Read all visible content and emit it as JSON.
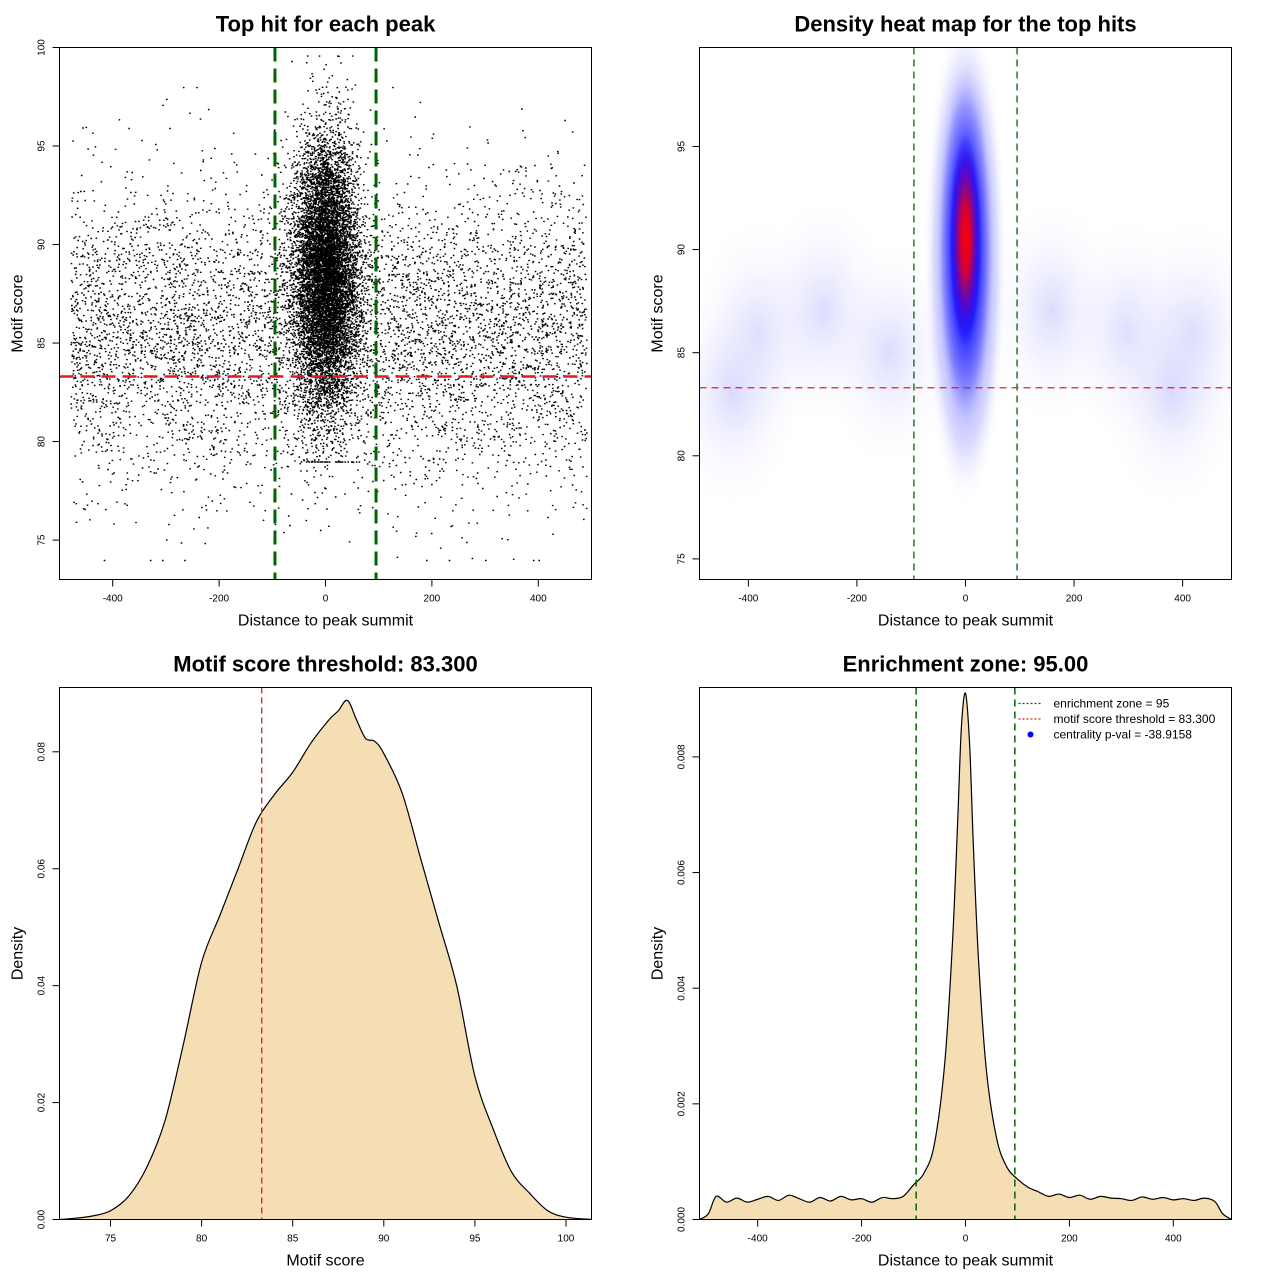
{
  "chart_data": [
    {
      "type": "scatter",
      "title": "Top hit for each peak",
      "xlabel": "Distance to peak summit",
      "ylabel": "Motif score",
      "xlim": [
        -500,
        500
      ],
      "ylim": [
        73,
        100
      ],
      "xticks": [
        -400,
        -200,
        0,
        200,
        400
      ],
      "yticks": [
        75,
        80,
        85,
        90,
        95,
        100
      ],
      "vlines": [
        -95,
        95
      ],
      "hline": 83.3,
      "colors": {
        "points": "#000000",
        "vlines": "#006400",
        "hline": "#e41a1c"
      },
      "points_model": {
        "description": "~16000 hits; dense cluster centred at 0 (sd ~30) with scores 79-99, plus uniform background across -480..490 with scores 77-93",
        "central_count": 9500,
        "central_x_sd": 30,
        "central_score_mean": 88.5,
        "central_score_sd": 3.4,
        "background_count": 6500,
        "background_x_range": [
          -480,
          490
        ],
        "background_score_mean": 85.5,
        "background_score_sd": 3.8
      }
    },
    {
      "type": "heatmap",
      "title": "Density heat map for the top hits",
      "xlabel": "Distance to peak summit",
      "ylabel": "Motif score",
      "xlim": [
        -490,
        490
      ],
      "ylim": [
        74,
        99.8
      ],
      "xticks": [
        -400,
        -200,
        0,
        200,
        400
      ],
      "yticks": [
        75,
        80,
        85,
        90,
        95
      ],
      "vlines": [
        -95,
        95
      ],
      "hline": 83.3,
      "peak": {
        "x": 0,
        "y": 90.5
      },
      "colors": {
        "low": "#ffffff",
        "mid": "#0000ff",
        "high": "#ff0000",
        "vlines": "#006400",
        "hline": "#d62728"
      }
    },
    {
      "type": "area",
      "title": "Motif score threshold: 83.300",
      "xlabel": "Motif score",
      "ylabel": "Density",
      "xlim": [
        72.2,
        101.4
      ],
      "ylim": [
        0,
        0.091
      ],
      "xticks": [
        75,
        80,
        85,
        90,
        95,
        100
      ],
      "yticks": [
        0.0,
        0.02,
        0.04,
        0.06,
        0.08
      ],
      "ytick_labels": [
        "0.00",
        "0.02",
        "0.04",
        "0.06",
        "0.08"
      ],
      "vline": 83.3,
      "fill": "#f5deb3",
      "x": [
        72.2,
        73,
        74,
        75,
        76,
        77,
        78,
        79,
        80,
        81,
        82,
        83,
        84,
        85,
        86,
        87,
        87.5,
        88,
        88.5,
        89,
        89.5,
        90,
        91,
        92,
        93,
        94,
        95,
        96,
        97,
        98,
        99,
        100,
        101.4
      ],
      "y": [
        0.0,
        0.0002,
        0.0006,
        0.0015,
        0.004,
        0.009,
        0.017,
        0.03,
        0.044,
        0.052,
        0.06,
        0.068,
        0.0727,
        0.0765,
        0.0815,
        0.0855,
        0.087,
        0.0888,
        0.0855,
        0.0823,
        0.0818,
        0.0797,
        0.073,
        0.062,
        0.051,
        0.04,
        0.0245,
        0.0155,
        0.0082,
        0.0045,
        0.0015,
        0.0004,
        0.0
      ]
    },
    {
      "type": "area",
      "title": "Enrichment zone: 95.00",
      "xlabel": "Distance to peak summit",
      "ylabel": "Density",
      "xlim": [
        -512,
        512
      ],
      "ylim": [
        0,
        0.0092
      ],
      "xticks": [
        -400,
        -200,
        0,
        200,
        400
      ],
      "yticks": [
        0.0,
        0.002,
        0.004,
        0.006,
        0.008
      ],
      "ytick_labels": [
        "0.000",
        "0.002",
        "0.004",
        "0.006",
        "0.008"
      ],
      "vlines": [
        -95,
        95
      ],
      "fill": "#f5deb3",
      "x": [
        -512,
        -495,
        -480,
        -460,
        -440,
        -420,
        -400,
        -380,
        -360,
        -340,
        -320,
        -300,
        -280,
        -260,
        -240,
        -220,
        -200,
        -180,
        -160,
        -140,
        -120,
        -100,
        -80,
        -60,
        -40,
        -25,
        -15,
        -8,
        0,
        8,
        15,
        25,
        40,
        60,
        80,
        100,
        120,
        140,
        160,
        180,
        200,
        220,
        240,
        260,
        280,
        300,
        320,
        340,
        360,
        380,
        400,
        420,
        440,
        460,
        480,
        495,
        512
      ],
      "y": [
        0.0,
        0.0001,
        0.0004,
        0.0003,
        0.00037,
        0.0003,
        0.00035,
        0.0004,
        0.00033,
        0.00042,
        0.00036,
        0.0003,
        0.00038,
        0.00032,
        0.0004,
        0.00034,
        0.00036,
        0.0003,
        0.00038,
        0.00036,
        0.0004,
        0.0006,
        0.0008,
        0.0013,
        0.0027,
        0.0048,
        0.0069,
        0.0085,
        0.0091,
        0.0082,
        0.0065,
        0.0045,
        0.0026,
        0.0014,
        0.0009,
        0.0007,
        0.00056,
        0.00048,
        0.0004,
        0.00044,
        0.00038,
        0.00042,
        0.00035,
        0.0004,
        0.00037,
        0.00036,
        0.00033,
        0.00039,
        0.00035,
        0.00038,
        0.00034,
        0.00036,
        0.00033,
        0.00037,
        0.00031,
        0.0001,
        0.0
      ],
      "legend": {
        "position": "top-right",
        "entries": [
          {
            "label": "enrichment zone = 95",
            "color": "#006400",
            "style": "dotted-line"
          },
          {
            "label": "motif score threshold = 83.300",
            "color": "#e41a1c",
            "style": "dotted-line"
          },
          {
            "label": "centrality p-val = -38.9158",
            "color": "#0000ff",
            "style": "point"
          }
        ]
      }
    }
  ]
}
